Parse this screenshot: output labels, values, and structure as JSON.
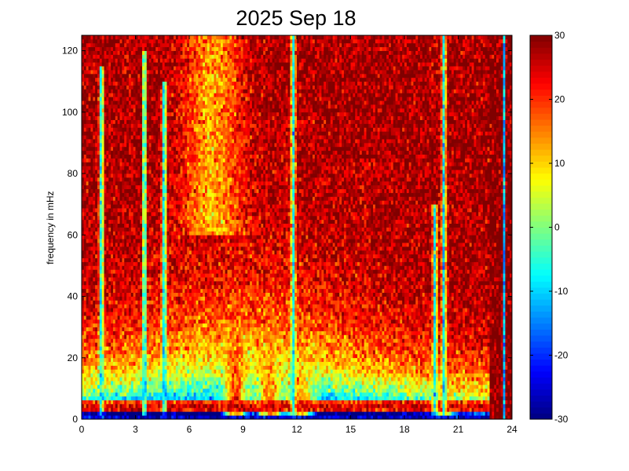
{
  "chart_data": {
    "type": "heatmap",
    "title": "2025 Sep 18",
    "xlabel": "",
    "ylabel": "frequency in mHz",
    "xlim": [
      0,
      24
    ],
    "ylim": [
      0,
      125
    ],
    "xticks": [
      0,
      3,
      6,
      9,
      12,
      15,
      18,
      21,
      24
    ],
    "yticks": [
      0,
      20,
      40,
      60,
      80,
      100,
      120
    ],
    "colorbar": {
      "colormap": "jet",
      "clim": [
        -30,
        30
      ],
      "ticks": [
        -30,
        -20,
        -10,
        0,
        10,
        20,
        30
      ]
    },
    "grid": false,
    "x_resolution_hours": 0.125,
    "y_resolution_mhz": 1.25,
    "features": {
      "background_level": 28,
      "low_freq_band": {
        "freq_range": [
          2,
          6
        ],
        "x_range": [
          0,
          22.8
        ],
        "level": 26
      },
      "energy_bursts": [
        {
          "x_center": 8.6,
          "x_width": 0.6,
          "freq_top": 55,
          "level": 20
        },
        {
          "x_center": 10.5,
          "x_width": 0.8,
          "freq_top": 45,
          "level": 16
        },
        {
          "x_center": 12.2,
          "x_width": 0.7,
          "freq_top": 40,
          "level": 15
        },
        {
          "x_center": 20.2,
          "x_width": 0.4,
          "freq_top": 40,
          "level": 14
        }
      ],
      "vertical_streaks": [
        {
          "x": 1.1,
          "freq_top": 115,
          "level": -10
        },
        {
          "x": 3.5,
          "freq_top": 120,
          "level": -8
        },
        {
          "x": 4.6,
          "freq_top": 110,
          "level": -10
        },
        {
          "x": 11.8,
          "freq_top": 125,
          "level": -8
        },
        {
          "x": 19.7,
          "freq_top": 70,
          "level": -8
        },
        {
          "x": 20.2,
          "freq_top": 125,
          "level": -8
        }
      ],
      "saturated_event": {
        "x_range": [
          22.8,
          24
        ],
        "freq_range": [
          0,
          125
        ],
        "level": 30
      },
      "lowest_bin_level": -25
    }
  }
}
